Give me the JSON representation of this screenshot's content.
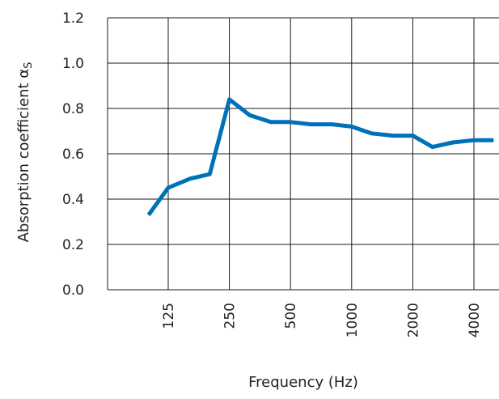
{
  "chart_data": {
    "type": "line",
    "title": "",
    "xlabel": "Frequency (Hz)",
    "ylabel": "Absorption coefficient αS",
    "ylabel_main": "Absorption coefficient ",
    "ylabel_symbol": "α",
    "ylabel_subscript": "S",
    "x_scale": "log2 (third-octave bands)",
    "x_tick_labels": [
      "125",
      "250",
      "500",
      "1000",
      "2000",
      "4000"
    ],
    "y_tick_labels": [
      "0.0",
      "0.2",
      "0.4",
      "0.6",
      "0.8",
      "1.0",
      "1.2"
    ],
    "ylim": [
      0,
      1.2
    ],
    "grid": true,
    "line_color": "#0070B8",
    "series": [
      {
        "x": [
          100,
          125,
          160,
          200,
          250,
          315,
          400,
          500,
          630,
          800,
          1000,
          1250,
          1600,
          2000,
          2500,
          3150,
          4000,
          5000
        ],
        "values": [
          0.33,
          0.45,
          0.49,
          0.51,
          0.84,
          0.77,
          0.74,
          0.74,
          0.73,
          0.73,
          0.72,
          0.69,
          0.68,
          0.68,
          0.63,
          0.65,
          0.66,
          0.66
        ]
      }
    ]
  }
}
